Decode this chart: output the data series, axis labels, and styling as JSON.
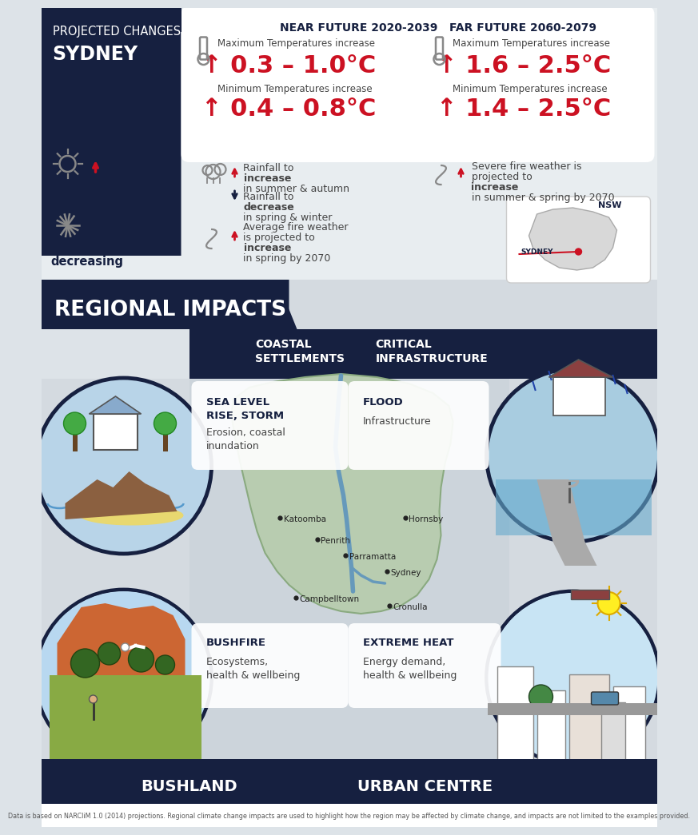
{
  "bg_color": "#dde3e8",
  "dark_navy": "#162040",
  "red": "#cc1122",
  "white": "#ffffff",
  "gray_text": "#444444",
  "light_gray": "#f0f2f4",
  "near_future_title": "NEAR FUTURE 2020-2039",
  "far_future_title": "FAR FUTURE 2060-2079",
  "near_max_label": "Maximum Temperatures increase",
  "near_max_val": "↑ 0.3 – 1.0°C",
  "near_min_label": "Minimum Temperatures increase",
  "near_min_val": "↑ 0.4 – 0.8°C",
  "far_max_label": "Maximum Temperatures increase",
  "far_max_val": "↑ 1.6 – 2.5°C",
  "far_min_label": "Minimum Temperatures increase",
  "far_min_val": "↑ 1.4 – 2.5°C",
  "regional_title": "REGIONAL IMPACTS",
  "coastal_title": "COASTAL\nSETTLEMENTS",
  "critical_title": "CRITICAL\nINFRASTRUCTURE",
  "sea_level_title": "SEA LEVEL\nRISE, STORM",
  "sea_level_desc": "Erosion, coastal\ninundation",
  "flood_title": "FLOOD",
  "flood_desc": "Infrastructure",
  "bushfire_title": "BUSHFIRE",
  "bushfire_desc": "Ecosystems,\nhealth & wellbeing",
  "extreme_heat_title": "EXTREME HEAT",
  "extreme_heat_desc": "Energy demand,\nhealth & wellbeing",
  "bushland_label": "BUSHLAND",
  "urban_label": "URBAN CENTRE",
  "footnote": "Data is based on NARCliM 1.0 (2014) projections. Regional climate change impacts are used to highlight how the region may be affected by climate change, and impacts are not limited to the examples provided.",
  "cities": [
    [
      "Katoomba",
      298,
      638
    ],
    [
      "Penrith",
      345,
      665
    ],
    [
      "Hornsby",
      455,
      638
    ],
    [
      "Parramatta",
      380,
      685
    ],
    [
      "Sydney",
      432,
      705
    ],
    [
      "Campbelltown",
      318,
      738
    ],
    [
      "Cronulla",
      435,
      748
    ]
  ]
}
